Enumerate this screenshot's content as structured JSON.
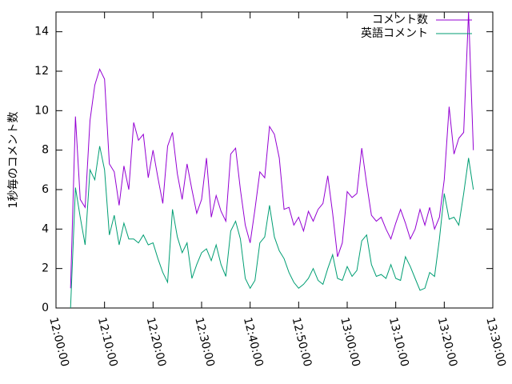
{
  "chart_data": {
    "type": "line",
    "ylabel": "1秒毎のコメント数",
    "x": [
      "12:03:00",
      "12:04:00",
      "12:05:00",
      "12:06:00",
      "12:07:00",
      "12:08:00",
      "12:09:00",
      "12:10:00",
      "12:11:00",
      "12:12:00",
      "12:13:00",
      "12:14:00",
      "12:15:00",
      "12:16:00",
      "12:17:00",
      "12:18:00",
      "12:19:00",
      "12:20:00",
      "12:21:00",
      "12:22:00",
      "12:23:00",
      "12:24:00",
      "12:25:00",
      "12:26:00",
      "12:27:00",
      "12:28:00",
      "12:29:00",
      "12:30:00",
      "12:31:00",
      "12:32:00",
      "12:33:00",
      "12:34:00",
      "12:35:00",
      "12:36:00",
      "12:37:00",
      "12:38:00",
      "12:39:00",
      "12:40:00",
      "12:41:00",
      "12:42:00",
      "12:43:00",
      "12:44:00",
      "12:45:00",
      "12:46:00",
      "12:47:00",
      "12:48:00",
      "12:49:00",
      "12:50:00",
      "12:51:00",
      "12:52:00",
      "12:53:00",
      "12:54:00",
      "12:55:00",
      "12:56:00",
      "12:57:00",
      "12:58:00",
      "12:59:00",
      "13:00:00",
      "13:01:00",
      "13:02:00",
      "13:03:00",
      "13:04:00",
      "13:05:00",
      "13:06:00",
      "13:07:00",
      "13:08:00",
      "13:09:00",
      "13:10:00",
      "13:11:00",
      "13:12:00",
      "13:13:00",
      "13:14:00",
      "13:15:00",
      "13:16:00",
      "13:17:00",
      "13:18:00",
      "13:19:00",
      "13:20:00",
      "13:21:00",
      "13:22:00",
      "13:23:00",
      "13:24:00",
      "13:25:00",
      "13:26:00"
    ],
    "series": [
      {
        "name": "コメント数",
        "color": "#9400d3",
        "values": [
          1,
          9.7,
          5.5,
          5.1,
          9.5,
          11.3,
          12.1,
          11.6,
          7.3,
          6.9,
          5.2,
          7.2,
          6.0,
          9.4,
          8.5,
          8.8,
          6.6,
          8.0,
          6.6,
          5.3,
          8.2,
          8.9,
          6.8,
          5.5,
          7.3,
          6.0,
          4.8,
          5.5,
          7.6,
          4.6,
          5.7,
          4.9,
          4.4,
          7.8,
          8.1,
          6.0,
          4.2,
          3.3,
          5.0,
          6.9,
          6.6,
          9.2,
          8.8,
          7.6,
          5.0,
          5.1,
          4.2,
          4.6,
          3.9,
          4.9,
          4.4,
          5.0,
          5.3,
          6.7,
          4.8,
          2.6,
          3.3,
          5.9,
          5.6,
          5.8,
          8.1,
          6.3,
          4.7,
          4.4,
          4.6,
          4.0,
          3.5,
          4.3,
          5.0,
          4.3,
          3.5,
          4.0,
          5.0,
          4.2,
          5.1,
          4.0,
          4.6,
          6.5,
          10.2,
          7.8,
          8.6,
          8.9,
          15,
          8.0
        ]
      },
      {
        "name": "英語コメント",
        "color": "#009e73",
        "values": [
          0,
          6.1,
          4.6,
          3.2,
          7.0,
          6.5,
          8.2,
          7.0,
          3.7,
          4.7,
          3.2,
          4.3,
          3.5,
          3.5,
          3.3,
          3.7,
          3.2,
          3.3,
          2.5,
          1.8,
          1.3,
          5.0,
          3.6,
          2.8,
          3.3,
          1.5,
          2.2,
          2.8,
          3.0,
          2.4,
          3.2,
          2.2,
          1.6,
          3.9,
          4.4,
          3.5,
          1.5,
          1.0,
          1.4,
          3.3,
          3.6,
          5.2,
          3.6,
          2.9,
          2.5,
          1.8,
          1.3,
          1.0,
          1.2,
          1.5,
          2.0,
          1.4,
          1.2,
          2.0,
          2.7,
          1.5,
          1.4,
          2.1,
          1.6,
          1.9,
          3.4,
          3.7,
          2.2,
          1.6,
          1.7,
          1.5,
          2.2,
          1.5,
          1.4,
          2.6,
          2.1,
          1.5,
          0.9,
          1.0,
          1.8,
          1.6,
          3.5,
          5.8,
          4.5,
          4.6,
          4.2,
          5.8,
          7.6,
          6.0
        ]
      }
    ],
    "xlim": [
      "12:00:00",
      "13:30:00"
    ],
    "xticks": [
      "12:00:00",
      "12:10:00",
      "12:20:00",
      "12:30:00",
      "12:40:00",
      "12:50:00",
      "13:00:00",
      "13:10:00",
      "13:20:00",
      "13:30:00"
    ],
    "ylim": [
      0,
      15
    ],
    "yticks": [
      0,
      2,
      4,
      6,
      8,
      10,
      12,
      14
    ],
    "legend": "top-right"
  }
}
